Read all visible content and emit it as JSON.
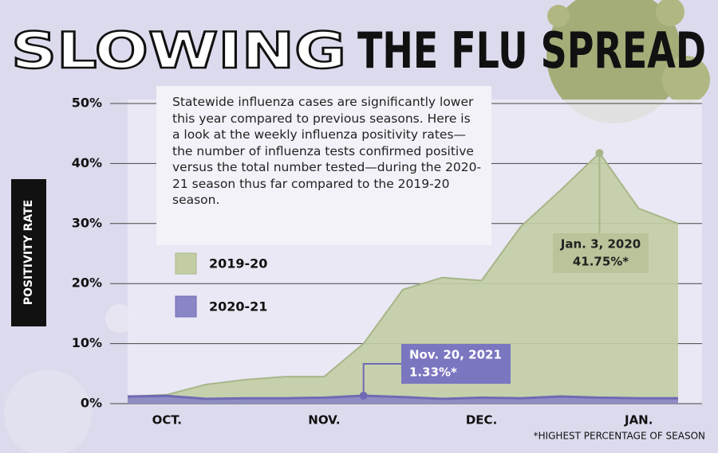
{
  "chart_data": {
    "type": "area",
    "title": [
      "SLOWING",
      "THE FLU SPREAD"
    ],
    "description": "Statewide influenza cases are significantly lower this year compared to previous seasons. Here is a look at the weekly influenza positivity rates—the number of influenza tests confirmed positive versus the total number tested—during the 2020-21 season thus far compared to the 2019-20 season.",
    "y_label": "POSITIVITY RATE",
    "categories": [
      null,
      "OCT.",
      null,
      null,
      null,
      "NOV.",
      null,
      null,
      null,
      "DEC.",
      null,
      null,
      null,
      "JAN.",
      null
    ],
    "series": [
      {
        "name": "2019-20",
        "color": "#c3cda4",
        "line_color": "#a7b689",
        "values": [
          1.2,
          1.5,
          3.2,
          4.0,
          4.5,
          4.5,
          10.0,
          19.0,
          21.0,
          20.5,
          29.5,
          35.5,
          41.75,
          32.5,
          30.0
        ],
        "annotation": [
          "Jan. 3, 2020",
          "41.75%*"
        ]
      },
      {
        "name": "2020-21",
        "color": "#8a86c6",
        "line_color": "#6f6ab3",
        "values": [
          1.2,
          1.3,
          0.8,
          0.9,
          0.9,
          1.0,
          1.33,
          1.1,
          0.8,
          1.0,
          0.9,
          1.2,
          1.0,
          0.9,
          0.9
        ],
        "annotation": [
          "Nov. 20, 2021",
          "1.33%*"
        ]
      }
    ],
    "ylim": [
      0,
      50
    ],
    "yticks": [
      {
        "value": 0,
        "label": "0%"
      },
      {
        "value": 10,
        "label": "10%"
      },
      {
        "value": 20,
        "label": "20%"
      },
      {
        "value": 30,
        "label": "30%"
      },
      {
        "value": 40,
        "label": "40%"
      },
      {
        "value": 50,
        "label": "50%"
      }
    ],
    "grid": true,
    "footnote": "*HIGHEST PERCENTAGE OF SEASON"
  }
}
